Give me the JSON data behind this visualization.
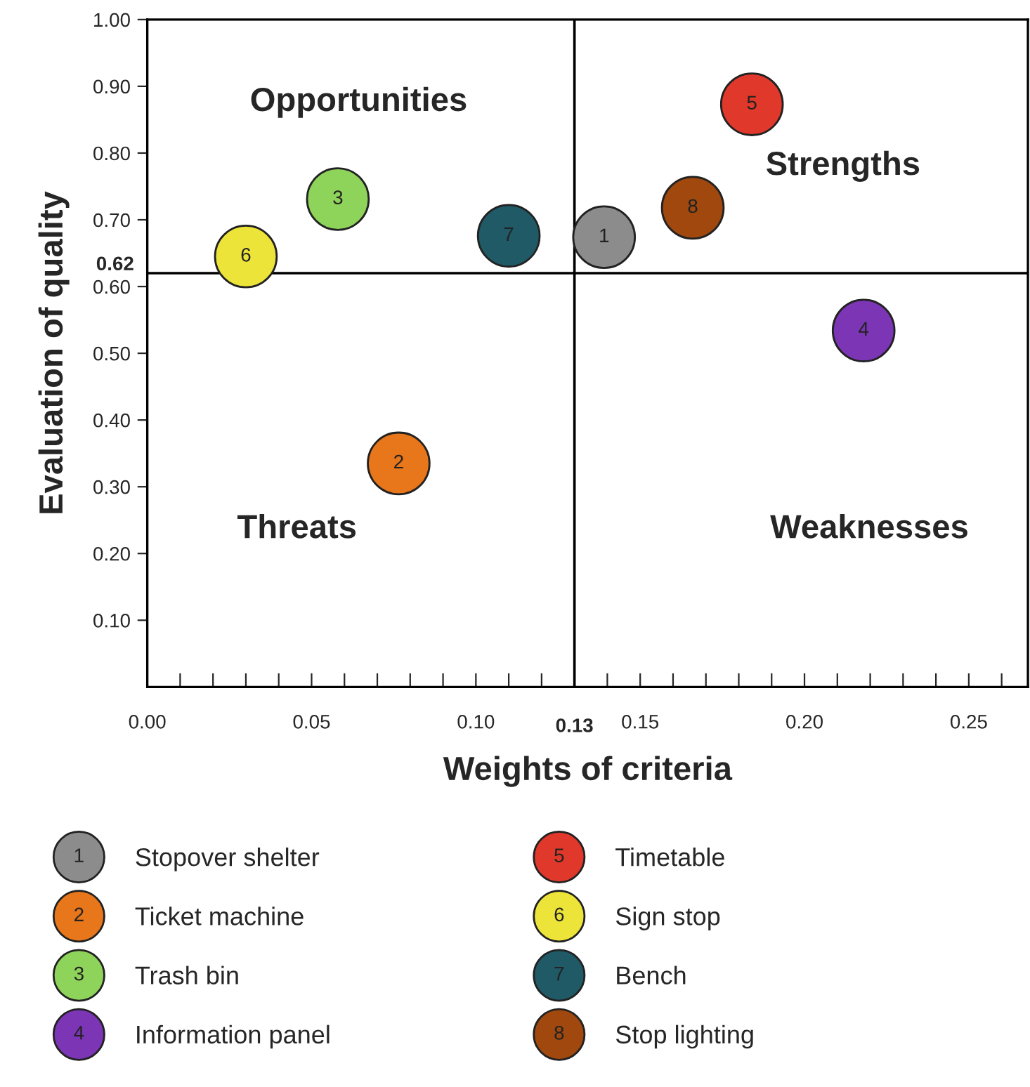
{
  "chart_data": {
    "type": "scatter",
    "xlabel": "Weights of criteria",
    "ylabel": "Evaluation of quality",
    "xlim": [
      0,
      0.268
    ],
    "ylim": [
      0,
      1.0
    ],
    "xticks": [
      {
        "value": 0,
        "label": "0.00"
      },
      {
        "value": 0.01,
        "label": null
      },
      {
        "value": 0.02,
        "label": null
      },
      {
        "value": 0.03,
        "label": null
      },
      {
        "value": 0.04,
        "label": null
      },
      {
        "value": 0.05,
        "label": "0.05"
      },
      {
        "value": 0.06,
        "label": null
      },
      {
        "value": 0.07,
        "label": null
      },
      {
        "value": 0.08,
        "label": null
      },
      {
        "value": 0.09,
        "label": null
      },
      {
        "value": 0.1,
        "label": "0.10"
      },
      {
        "value": 0.11,
        "label": null
      },
      {
        "value": 0.12,
        "label": null
      },
      {
        "value": 0.14,
        "label": null
      },
      {
        "value": 0.15,
        "label": "0.15"
      },
      {
        "value": 0.16,
        "label": null
      },
      {
        "value": 0.17,
        "label": null
      },
      {
        "value": 0.18,
        "label": null
      },
      {
        "value": 0.19,
        "label": null
      },
      {
        "value": 0.2,
        "label": "0.20"
      },
      {
        "value": 0.21,
        "label": null
      },
      {
        "value": 0.22,
        "label": null
      },
      {
        "value": 0.23,
        "label": null
      },
      {
        "value": 0.24,
        "label": null
      },
      {
        "value": 0.25,
        "label": "0.25"
      },
      {
        "value": 0.26,
        "label": null
      }
    ],
    "yticks": [
      {
        "value": 0.1,
        "label": "0.10"
      },
      {
        "value": 0.2,
        "label": "0.20"
      },
      {
        "value": 0.3,
        "label": "0.30"
      },
      {
        "value": 0.4,
        "label": "0.40"
      },
      {
        "value": 0.5,
        "label": "0.50"
      },
      {
        "value": 0.6,
        "label": "0.60"
      },
      {
        "value": 0.7,
        "label": "0.70"
      },
      {
        "value": 0.8,
        "label": "0.80"
      },
      {
        "value": 0.9,
        "label": "0.90"
      },
      {
        "value": 1.0,
        "label": "1.00"
      }
    ],
    "ref_lines": [
      {
        "axis": "x",
        "value": 0.13,
        "label": "0.13"
      },
      {
        "axis": "y",
        "value": 0.62,
        "label": "0.62"
      }
    ],
    "marker": "circle",
    "grid": false,
    "legend": "bottom",
    "series": [
      {
        "name": "Stopover shelter",
        "color": "#8c8c8c",
        "x": [
          0.139
        ],
        "values": [
          0.674
        ]
      },
      {
        "name": "Ticket machine",
        "color": "#e8761a",
        "x": [
          0.0765
        ],
        "values": [
          0.335
        ]
      },
      {
        "name": "Trash bin",
        "color": "#8fd45a",
        "x": [
          0.058
        ],
        "values": [
          0.731
        ]
      },
      {
        "name": "Information panel",
        "color": "#7b35b5",
        "x": [
          0.218
        ],
        "values": [
          0.534
        ]
      },
      {
        "name": "Timetable",
        "color": "#e0382a",
        "x": [
          0.184
        ],
        "values": [
          0.873
        ]
      },
      {
        "name": "Sign stop",
        "color": "#ede43a",
        "x": [
          0.03
        ],
        "values": [
          0.645
        ]
      },
      {
        "name": "Bench",
        "color": "#1f5a66",
        "x": [
          0.11
        ],
        "values": [
          0.676
        ]
      },
      {
        "name": "Stop lighting",
        "color": "#a0480e",
        "x": [
          0.166
        ],
        "values": [
          0.718
        ]
      }
    ],
    "annotations": [
      "Opportunities",
      "Strengths",
      "Threats",
      "Weaknesses",
      {
        "text": "1",
        "x": 0.139,
        "y": 0.674
      },
      {
        "text": "2",
        "x": 0.0765,
        "y": 0.335
      },
      {
        "text": "3",
        "x": 0.058,
        "y": 0.731
      },
      {
        "text": "4",
        "x": 0.218,
        "y": 0.534
      },
      {
        "text": "5",
        "x": 0.184,
        "y": 0.873
      },
      {
        "text": "6",
        "x": 0.03,
        "y": 0.645
      },
      {
        "text": "7",
        "x": 0.11,
        "y": 0.676
      },
      {
        "text": "8",
        "x": 0.166,
        "y": 0.718
      }
    ]
  }
}
